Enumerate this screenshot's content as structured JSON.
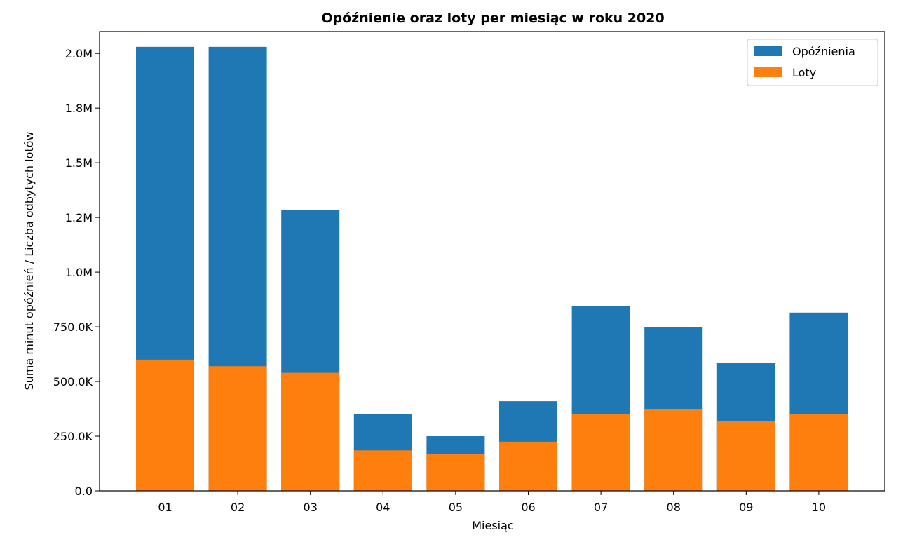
{
  "chart_data": {
    "type": "bar",
    "title": "Opóźnienie oraz loty per miesiąc w roku 2020",
    "xlabel": "Miesiąc",
    "ylabel": "Suma minut opóźnień / Liczba odbytych lotów",
    "categories": [
      "01",
      "02",
      "03",
      "04",
      "05",
      "06",
      "07",
      "08",
      "09",
      "10"
    ],
    "ylim": [
      0,
      2100000
    ],
    "yticks": [
      {
        "value": 0,
        "label": "0.0"
      },
      {
        "value": 250000,
        "label": "250.0K"
      },
      {
        "value": 500000,
        "label": "500.0K"
      },
      {
        "value": 750000,
        "label": "750.0K"
      },
      {
        "value": 1000000,
        "label": "1.0M"
      },
      {
        "value": 1250000,
        "label": "1.2M"
      },
      {
        "value": 1500000,
        "label": "1.5M"
      },
      {
        "value": 1750000,
        "label": "1.8M"
      },
      {
        "value": 2000000,
        "label": "2.0M"
      }
    ],
    "series": [
      {
        "name": "Opóźnienia",
        "color": "#1f77b4",
        "values": [
          2030000,
          2030000,
          1285000,
          350000,
          250000,
          410000,
          845000,
          750000,
          585000,
          815000
        ]
      },
      {
        "name": "Loty",
        "color": "#ff7f0e",
        "values": [
          600000,
          570000,
          540000,
          185000,
          170000,
          225000,
          350000,
          375000,
          320000,
          350000
        ]
      }
    ],
    "grid": false,
    "legend_position": "top-right"
  }
}
